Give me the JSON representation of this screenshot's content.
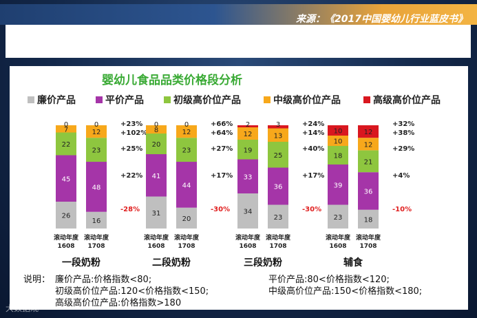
{
  "header": {
    "source": "来源：《2017中国婴幼儿行业蓝皮书》"
  },
  "chart_data": {
    "type": "bar",
    "title": "婴幼儿食品品类价格段分析",
    "legend": [
      "廉价产品",
      "平价产品",
      "初级高价位产品",
      "中级高价位产品",
      "高级高价位产品"
    ],
    "colors": [
      "#bfbfbf",
      "#a535a8",
      "#8ec63f",
      "#f7a81b",
      "#d9171f"
    ],
    "groups": [
      {
        "name": "一段奶粉",
        "bars": [
          {
            "label": "滚动年度\n1608",
            "values": [
              26,
              45,
              22,
              7,
              0
            ]
          },
          {
            "label": "滚动年度\n1708",
            "values": [
              16,
              48,
              23,
              12,
              0
            ]
          }
        ],
        "changes": [
          "-28%",
          "+22%",
          "+25%",
          "+102%",
          "+23%"
        ]
      },
      {
        "name": "二段奶粉",
        "bars": [
          {
            "label": "滚动年度\n1608",
            "values": [
              31,
              41,
              20,
              8,
              0
            ]
          },
          {
            "label": "滚动年度\n1708",
            "values": [
              20,
              44,
              23,
              12,
              0
            ]
          }
        ],
        "changes": [
          "-30%",
          "+17%",
          "+27%",
          "+64%",
          "+66%"
        ]
      },
      {
        "name": "三段奶粉",
        "bars": [
          {
            "label": "滚动年度\n1608",
            "values": [
              34,
              33,
              19,
              12,
              2
            ]
          },
          {
            "label": "滚动年度\n1708",
            "values": [
              23,
              36,
              25,
              13,
              3
            ]
          }
        ],
        "changes": [
          "-30%",
          "+17%",
          "+40%",
          "+14%",
          "+24%"
        ]
      },
      {
        "name": "辅食",
        "bars": [
          {
            "label": "滚动年度\n1608",
            "values": [
              23,
              39,
              18,
              10,
              10
            ]
          },
          {
            "label": "滚动年度\n1708",
            "values": [
              18,
              36,
              21,
              12,
              12
            ]
          }
        ],
        "changes": [
          "-10%",
          "+4%",
          "+29%",
          "+38%",
          "+32%"
        ]
      }
    ]
  },
  "notes": {
    "prefix": "说明：",
    "items": [
      "廉价产品:价格指数<80;",
      "平价产品:80<价格指数<120;",
      "初级高价位产品:120<价格指数<150;",
      "中级高价位产品:150<价格指数<180;",
      "高级高价位产品:价格指数>180"
    ]
  },
  "watermark": "大数据观"
}
